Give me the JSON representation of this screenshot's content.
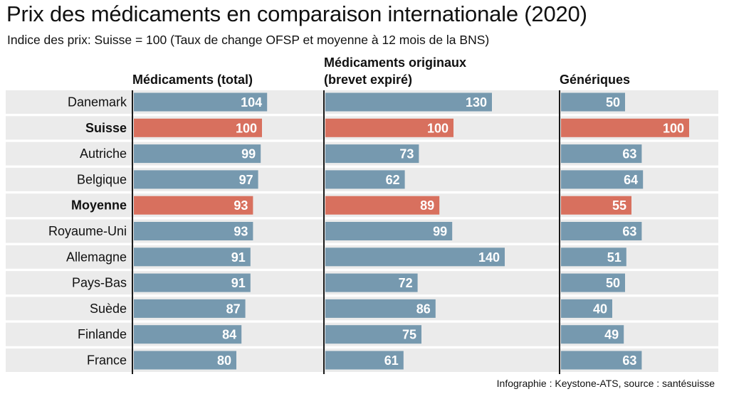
{
  "title": "Prix des médicaments en comparaison internationale (2020)",
  "subtitle": "Indice des prix: Suisse = 100 (Taux de change OFSP et moyenne à 12 mois de la BNS)",
  "source": "Infographie : Keystone-ATS, source : santésuisse",
  "colors": {
    "bar": "#7699af",
    "highlight": "#d8705e",
    "row_band": "#ebebeb",
    "divider": "#1a1a1a",
    "bar_label": "#ffffff"
  },
  "chart_data": {
    "type": "bar",
    "orientation": "horizontal",
    "categories": [
      "Danemark",
      "Suisse",
      "Autriche",
      "Belgique",
      "Moyenne",
      "Royaume-Uni",
      "Allemagne",
      "Pays-Bas",
      "Suède",
      "Finlande",
      "France"
    ],
    "highlighted": [
      "Suisse",
      "Moyenne"
    ],
    "series": [
      {
        "name": "Médicaments (total)",
        "values": [
          104,
          100,
          99,
          97,
          93,
          93,
          91,
          91,
          87,
          84,
          80
        ]
      },
      {
        "name": "Médicaments originaux\n(brevet expiré)",
        "values": [
          130,
          100,
          73,
          62,
          89,
          99,
          140,
          72,
          86,
          75,
          61
        ]
      },
      {
        "name": "Génériques",
        "values": [
          50,
          100,
          63,
          64,
          55,
          63,
          51,
          50,
          40,
          49,
          63
        ]
      }
    ],
    "data_labels": true,
    "legend": "none"
  }
}
